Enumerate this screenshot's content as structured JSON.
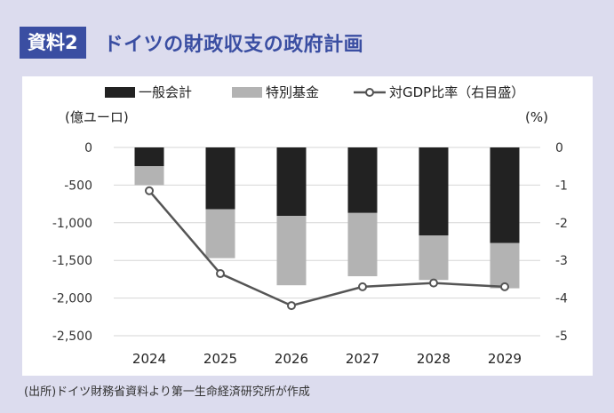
{
  "header": {
    "badge": "資料2",
    "title": "ドイツの財政収支の政府計画"
  },
  "source": "(出所)ドイツ財務省資料より第一生命経済研究所が作成",
  "colors": {
    "frame": "#dcdcee",
    "accent": "#3a4ea2",
    "general": "#222222",
    "special": "#b3b3b3",
    "line": "#555555"
  },
  "chart_data": {
    "type": "bar",
    "stacked": true,
    "title": "ドイツの財政収支の政府計画",
    "categories": [
      "2024",
      "2025",
      "2026",
      "2027",
      "2028",
      "2029"
    ],
    "series": [
      {
        "name": "一般会計",
        "kind": "bar",
        "axis": "left",
        "values": [
          -250,
          -820,
          -910,
          -870,
          -1170,
          -1270
        ]
      },
      {
        "name": "特別基金",
        "kind": "bar",
        "axis": "left",
        "values": [
          -250,
          -650,
          -920,
          -840,
          -590,
          -600
        ]
      },
      {
        "name": "対GDP比率（右目盛）",
        "kind": "line",
        "axis": "right",
        "values": [
          -1.15,
          -3.35,
          -4.2,
          -3.7,
          -3.6,
          -3.7
        ]
      }
    ],
    "ylabel_left": "(億ユーロ)",
    "ylabel_right": "(%)",
    "ylim_left": [
      -2500,
      0
    ],
    "ylim_right": [
      -5,
      0
    ],
    "yticks_left": [
      "0",
      "-500",
      "-1,000",
      "-1,500",
      "-2,000",
      "-2,500"
    ],
    "yticks_right": [
      "0",
      "-1",
      "-2",
      "-3",
      "-4",
      "-5"
    ],
    "legend_position": "top"
  }
}
